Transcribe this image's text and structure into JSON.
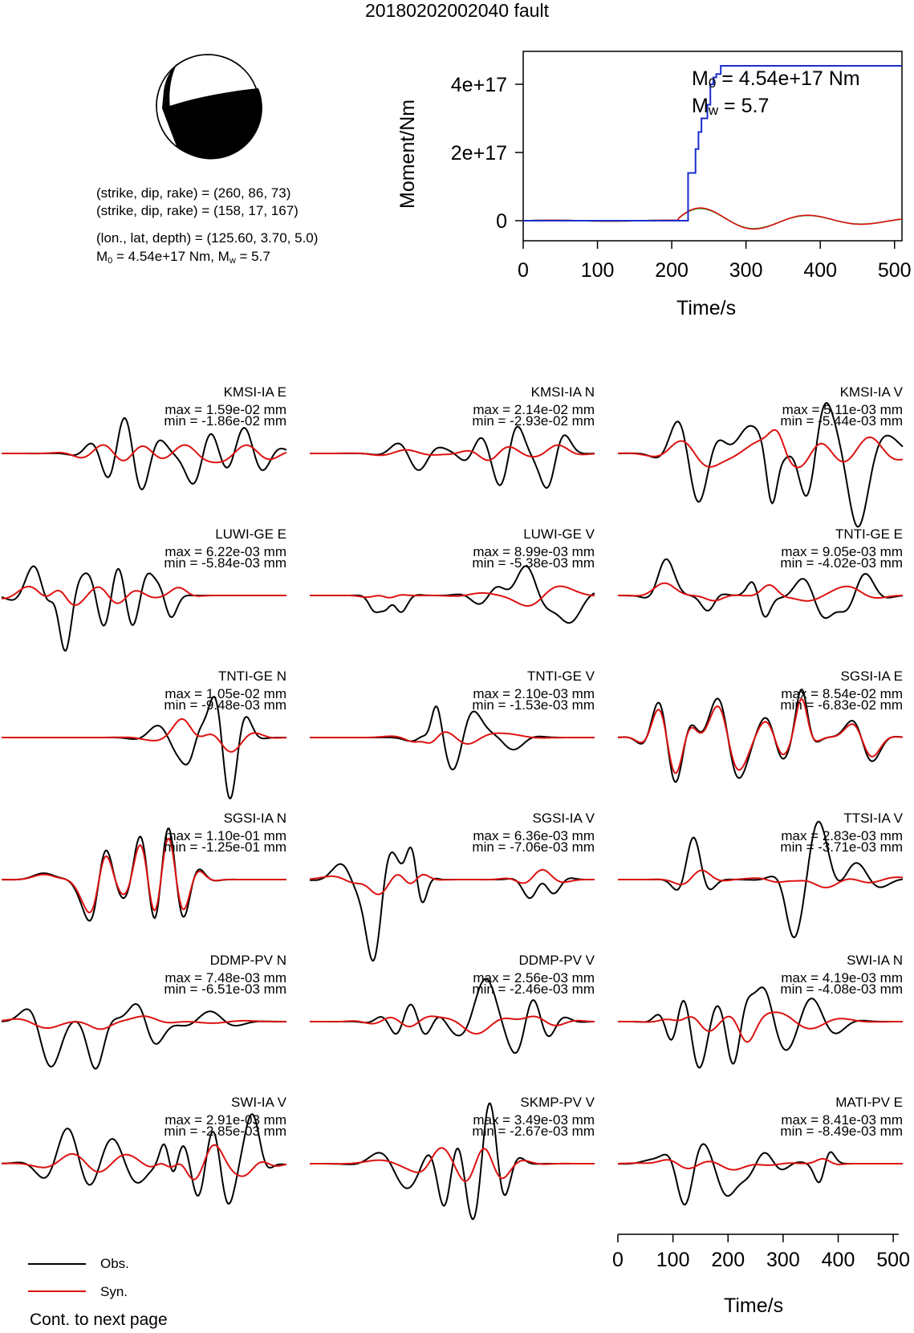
{
  "title": "20180202002040 fault",
  "source": {
    "line1": "(strike, dip, rake) = (260, 86, 73)",
    "line2": "(strike, dip, rake) = (158, 17, 167)",
    "line3": "(lon., lat, depth) = (125.60, 3.70, 5.0)",
    "m0_prefix": "M",
    "m0_sub": "0",
    "m0_rest": " = 4.54e+17 Nm, M",
    "mw_sub": "w",
    "mw_rest": " = 5.7"
  },
  "colors": {
    "observed": "#000000",
    "synthetic": "#dd1111",
    "moment": "#1a2ecc",
    "moment_rate_green": "#22aa22"
  },
  "chart_data": [
    {
      "type": "line",
      "title": "",
      "xlabel": "Time/s",
      "ylabel": "Moment/Nm",
      "xlim": [
        0,
        510
      ],
      "ylim": [
        -50000000000000000,
        500000000000000000
      ],
      "x_ticks": [
        "0",
        "100",
        "200",
        "300",
        "400",
        "500"
      ],
      "y_ticks": [
        "0",
        "2e+17",
        "4e+17"
      ],
      "annotation_m0": {
        "sym": "M",
        "sub": "0",
        "rest": " = 4.54e+17 Nm"
      },
      "annotation_mw": {
        "sym": "M",
        "sub": "w",
        "rest": " = 5.7"
      },
      "series": [
        {
          "color": "#1a2ecc",
          "x": [
            0,
            216,
            222,
            226,
            232,
            236,
            240,
            244,
            248,
            252,
            256,
            260,
            266,
            272,
            510
          ],
          "y": [
            0,
            0,
            140000000000000000,
            140000000000000000,
            210000000000000000,
            260000000000000000,
            300000000000000000,
            300000000000000000,
            340000000000000000,
            400000000000000000,
            420000000000000000,
            430000000000000000,
            454000000000000000,
            454000000000000000,
            454000000000000000
          ]
        }
      ]
    },
    {
      "type": "line",
      "title": "",
      "xlabel": "Time/s",
      "ylabel": "",
      "xlim": [
        0,
        510
      ],
      "x_ticks": [
        "0",
        "100",
        "200",
        "300",
        "400",
        "500"
      ],
      "traces": [
        {
          "name": "KMSI-IA E",
          "max": "max = 1.59e-02 mm",
          "min": "min = -1.86e-02 mm"
        },
        {
          "name": "KMSI-IA N",
          "max": "max = 2.14e-02 mm",
          "min": "min = -2.93e-02 mm"
        },
        {
          "name": "KMSI-IA V",
          "max": "max = 5.11e-03 mm",
          "min": "min = -5.44e-03 mm"
        },
        {
          "name": "LUWI-GE E",
          "max": "max = 6.22e-03 mm",
          "min": "min = -5.84e-03 mm"
        },
        {
          "name": "LUWI-GE V",
          "max": "max = 8.99e-03 mm",
          "min": "min = -5.38e-03 mm"
        },
        {
          "name": "TNTI-GE E",
          "max": "max = 9.05e-03 mm",
          "min": "min = -4.02e-03 mm"
        },
        {
          "name": "TNTI-GE N",
          "max": "max = 1.05e-02 mm",
          "min": "min = -9.48e-03 mm"
        },
        {
          "name": "TNTI-GE V",
          "max": "max = 2.10e-03 mm",
          "min": "min = -1.53e-03 mm"
        },
        {
          "name": "SGSI-IA E",
          "max": "max = 8.54e-02 mm",
          "min": "min = -6.83e-02 mm"
        },
        {
          "name": "SGSI-IA N",
          "max": "max = 1.10e-01 mm",
          "min": "min = -1.25e-01 mm"
        },
        {
          "name": "SGSI-IA V",
          "max": "max = 6.36e-03 mm",
          "min": "min = -7.06e-03 mm"
        },
        {
          "name": "TTSI-IA V",
          "max": "max = 2.83e-03 mm",
          "min": "min = -3.71e-03 mm"
        },
        {
          "name": "DDMP-PV N",
          "max": "max = 7.48e-03 mm",
          "min": "min = -6.51e-03 mm"
        },
        {
          "name": "DDMP-PV V",
          "max": "max = 2.56e-03 mm",
          "min": "min = -2.46e-03 mm"
        },
        {
          "name": "SWI-IA N",
          "max": "max = 4.19e-03 mm",
          "min": "min = -4.08e-03 mm"
        },
        {
          "name": "SWI-IA V",
          "max": "max = 2.91e-03 mm",
          "min": "min = -2.85e-03 mm"
        },
        {
          "name": "SKMP-PV V",
          "max": "max = 3.49e-03 mm",
          "min": "min = -2.67e-03 mm"
        },
        {
          "name": "MATI-PV E",
          "max": "max = 8.41e-03 mm",
          "min": "min = -8.49e-03 mm"
        }
      ]
    }
  ],
  "legend": {
    "obs": "Obs.",
    "syn": "Syn."
  },
  "footer": "Cont. to next page"
}
